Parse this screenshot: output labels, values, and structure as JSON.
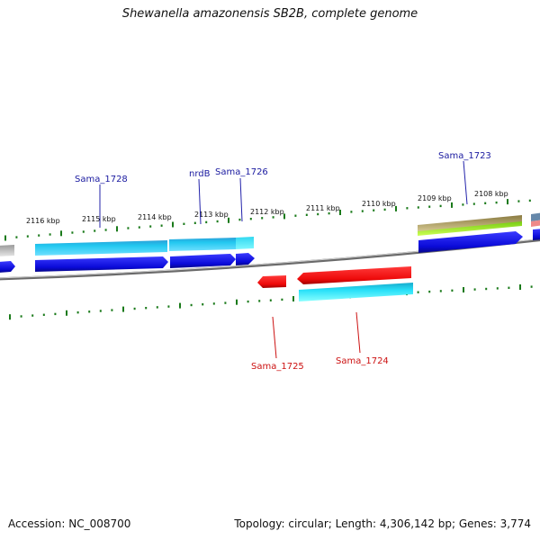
{
  "title": "Shewanella amazonensis SB2B, complete genome",
  "footer": {
    "accession": "Accession: NC_008700",
    "summary": "Topology: circular; Length: 4,306,142 bp; Genes: 3,774"
  },
  "colors": {
    "backbone": "#8a8a8a",
    "tick": "#1a7a1a",
    "gene_blue": "#0a0adc",
    "gene_cyan": "#22c4ee",
    "gene_red": "#ee1111",
    "gene_olive": "#a89a5a",
    "gene_lime": "#99ee22"
  },
  "ruler": {
    "tick_labels": [
      "2116 kbp",
      "2115 kbp",
      "2114 kbp",
      "2113 kbp",
      "2112 kbp",
      "2111 kbp",
      "2110 kbp",
      "2109 kbp",
      "2108 kbp"
    ]
  },
  "genes": {
    "forward_labels": [
      "Sama_1728",
      "nrdB",
      "Sama_1726",
      "Sama_1723"
    ],
    "reverse_labels": [
      "Sama_1725",
      "Sama_1724"
    ]
  }
}
